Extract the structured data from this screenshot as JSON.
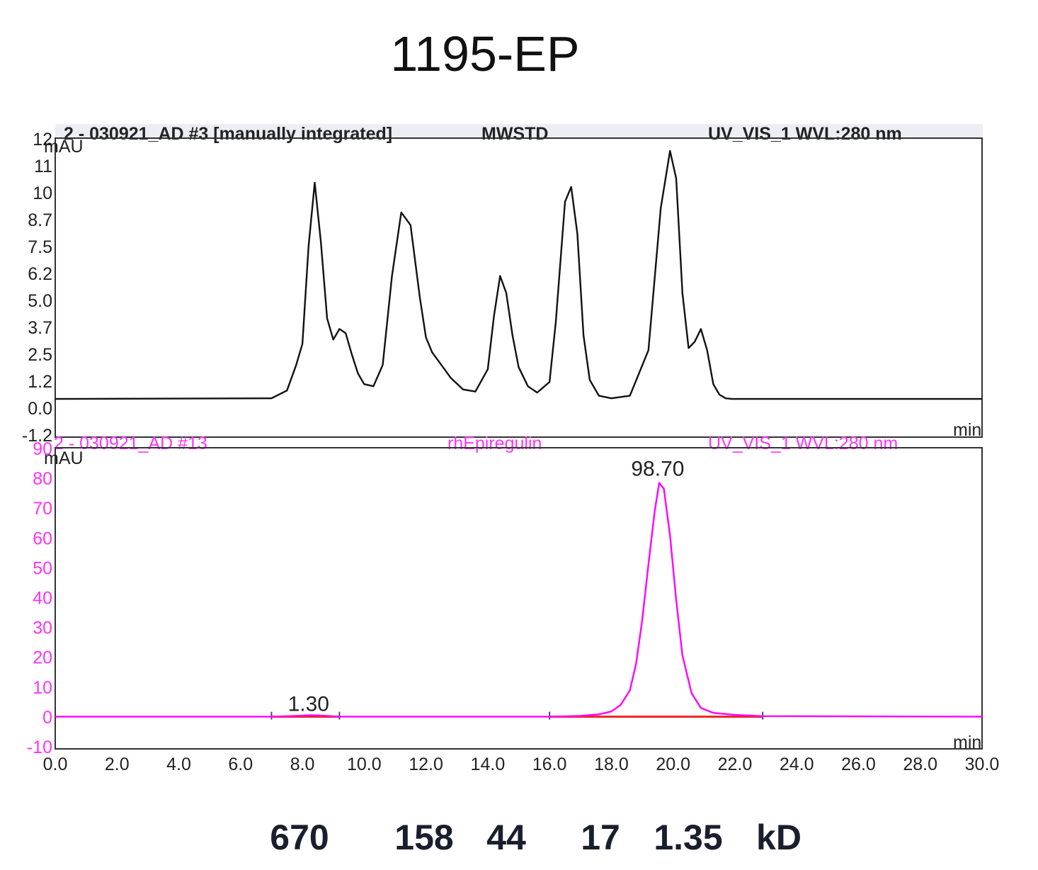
{
  "title": "1195-EP",
  "colors": {
    "top_trace": "#111111",
    "bottom_trace": "#ff00ff",
    "baseline": "#ee2222",
    "text": "#222222"
  },
  "chart_data": [
    {
      "type": "line",
      "panel": "top",
      "header": {
        "left": "2 - 030921_AD #3 [manually integrated]",
        "sample": "MWSTD",
        "right": "UV_VIS_1 WVL:280 nm"
      },
      "ylabel": "mAU",
      "xlabel": "min",
      "yticks": [
        "12",
        "11",
        "10",
        "8.7",
        "7.5",
        "6.2",
        "5.0",
        "3.7",
        "2.5",
        "1.2",
        "0.0",
        "-1.2"
      ],
      "xlim": [
        0,
        30
      ],
      "ylim": [
        -1.8,
        12.3
      ],
      "series": [
        {
          "x": [
            0,
            7.0,
            7.5,
            7.8,
            8.0,
            8.2,
            8.4,
            8.6,
            8.8,
            9.0,
            9.2,
            9.4,
            9.6,
            9.8,
            10.0,
            10.3,
            10.6,
            10.9,
            11.2,
            11.5,
            11.8,
            12.0,
            12.2,
            12.5,
            12.8,
            13.2,
            13.6,
            14.0,
            14.2,
            14.4,
            14.6,
            14.8,
            15.0,
            15.3,
            15.6,
            16.0,
            16.2,
            16.5,
            16.7,
            16.9,
            17.1,
            17.3,
            17.6,
            18.0,
            18.6,
            19.2,
            19.6,
            19.9,
            20.1,
            20.3,
            20.5,
            20.7,
            20.9,
            21.1,
            21.3,
            21.5,
            21.7,
            21.9,
            22.2,
            22.6,
            30.0
          ],
          "y": [
            0.0,
            0.03,
            0.4,
            1.6,
            2.6,
            7.2,
            10.2,
            7.4,
            3.8,
            2.8,
            3.3,
            3.1,
            2.1,
            1.2,
            0.7,
            0.6,
            1.6,
            5.8,
            8.8,
            8.2,
            4.8,
            2.9,
            2.2,
            1.6,
            1.0,
            0.45,
            0.35,
            1.4,
            3.9,
            5.8,
            5.0,
            3.0,
            1.5,
            0.6,
            0.3,
            0.8,
            3.6,
            9.3,
            10.0,
            7.8,
            3.0,
            0.9,
            0.15,
            0.03,
            0.15,
            2.3,
            9.0,
            11.7,
            10.4,
            5.0,
            2.4,
            2.7,
            3.3,
            2.3,
            0.7,
            0.2,
            0.03,
            0.0,
            0.0,
            0.0,
            0.0
          ]
        }
      ]
    },
    {
      "type": "line",
      "panel": "bottom",
      "header": {
        "left": "2 - 030921_AD #13",
        "sample": "rhEpiregulin",
        "right": "UV_VIS_1 WVL:280 nm"
      },
      "ylabel": "mAU",
      "xlabel": "min",
      "yticks": [
        "90",
        "80",
        "70",
        "60",
        "50",
        "40",
        "30",
        "20",
        "10",
        "0",
        "-10"
      ],
      "xlim": [
        0,
        30
      ],
      "ylim": [
        -11,
        92
      ],
      "xticks": [
        "0.0",
        "2.0",
        "4.0",
        "6.0",
        "8.0",
        "10.0",
        "12.0",
        "14.0",
        "16.0",
        "18.0",
        "20.0",
        "22.0",
        "24.0",
        "26.0",
        "28.0",
        "30.0"
      ],
      "peak_labels": [
        {
          "x": 8.2,
          "y": 1.0,
          "text": "1.30"
        },
        {
          "x": 19.5,
          "y": 81.5,
          "text": "98.70"
        }
      ],
      "integration_baselines": [
        {
          "x": [
            7.0,
            9.2
          ]
        },
        {
          "x": [
            16.0,
            22.9
          ]
        }
      ],
      "series": [
        {
          "x": [
            0,
            7.0,
            7.8,
            8.3,
            8.8,
            9.2,
            16.0,
            17.0,
            17.6,
            18.0,
            18.3,
            18.6,
            18.8,
            19.0,
            19.2,
            19.4,
            19.55,
            19.7,
            19.9,
            20.1,
            20.3,
            20.6,
            20.9,
            21.3,
            22.0,
            22.9,
            30.0
          ],
          "y": [
            0,
            0,
            0.3,
            0.5,
            0.3,
            0,
            0,
            0.3,
            0.8,
            1.8,
            4.0,
            9.0,
            18.0,
            33.0,
            52.0,
            70.0,
            80.0,
            78.0,
            62.0,
            40.0,
            21.0,
            8.0,
            3.0,
            1.3,
            0.6,
            0.2,
            0.0
          ]
        }
      ]
    }
  ],
  "mw_markers": {
    "labels": [
      "670",
      "158",
      "44",
      "17",
      "1.35",
      "kD"
    ]
  }
}
